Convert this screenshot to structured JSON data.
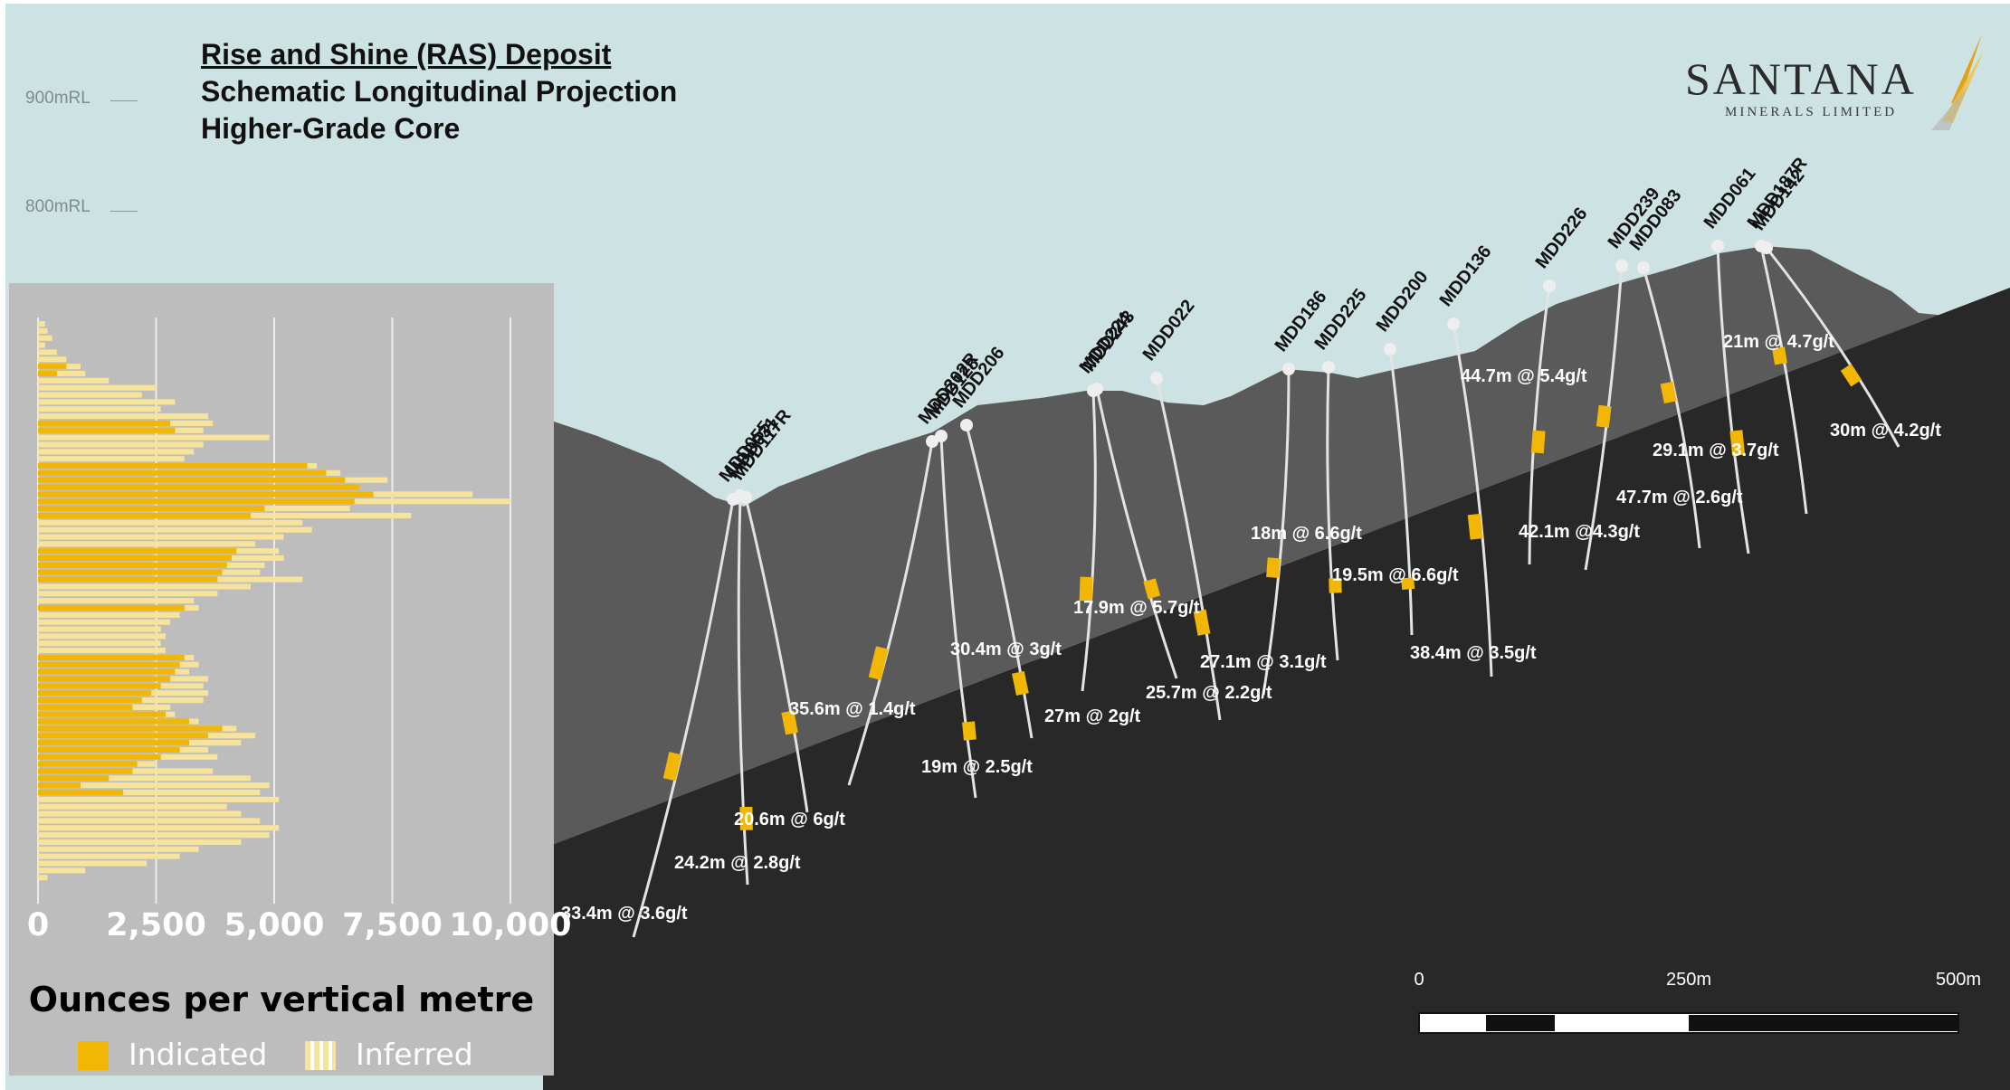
{
  "title": {
    "line1": "Rise and Shine (RAS) Deposit",
    "line2": "Schematic Longitudinal Projection",
    "line3": "Higher-Grade Core"
  },
  "rl_labels": [
    "900mRL",
    "800mRL"
  ],
  "logo": {
    "name": "SANTANA",
    "sub": "MINERALS LIMITED"
  },
  "colors": {
    "sky": "#cde3e3",
    "upper_zone": "#5a5a5a",
    "lower_zone": "#282828",
    "indicated": "#f2b705",
    "inferred": "#f7e39a",
    "drillhole": "#e3e3e3",
    "panel": "#bdbdbd"
  },
  "drillholes": [
    {
      "name": "MDD055"
    },
    {
      "name": "MDD031"
    },
    {
      "name": "MDD117R"
    },
    {
      "name": "MDD202R"
    },
    {
      "name": "MDD128"
    },
    {
      "name": "MDD206"
    },
    {
      "name": "MDD224"
    },
    {
      "name": "MDD243"
    },
    {
      "name": "MDD022"
    },
    {
      "name": "MDD186"
    },
    {
      "name": "MDD225"
    },
    {
      "name": "MDD200"
    },
    {
      "name": "MDD136"
    },
    {
      "name": "MDD226"
    },
    {
      "name": "MDD239"
    },
    {
      "name": "MDD083"
    },
    {
      "name": "MDD061"
    },
    {
      "name": "MDD187R"
    },
    {
      "name": "MDD142"
    }
  ],
  "intercepts": [
    "33.4m @ 3.6g/t",
    "24.2m @ 2.8g/t",
    "20.6m @ 6g/t",
    "35.6m @ 1.4g/t",
    "19m @ 2.5g/t",
    "30.4m @ 3g/t",
    "27m @ 2g/t",
    "17.9m @ 5.7g/t",
    "25.7m @ 2.2g/t",
    "27.1m @ 3.1g/t",
    "18m @ 6.6g/t",
    "19.5m @ 6.6g/t",
    "38.4m @ 3.5g/t",
    "44.7m @ 5.4g/t",
    "42.1m @4.3g/t",
    "47.7m @ 2.6g/t",
    "29.1m @ 3.7g/t",
    "21m @ 4.7g/t",
    "30m @ 4.2g/t"
  ],
  "scale_bar": {
    "labels": [
      "0",
      "250m",
      "500m"
    ]
  },
  "chart_data": {
    "type": "bar",
    "orientation": "horizontal",
    "title": "Ounces per vertical metre",
    "xlabel": "",
    "ylabel": "",
    "xlim": [
      0,
      10000
    ],
    "ticks": [
      0,
      2500,
      5000,
      7500,
      10000
    ],
    "tick_labels": [
      "0",
      "2,500",
      "5,000",
      "7,500",
      "10,000"
    ],
    "series": [
      {
        "name": "Indicated",
        "values": [
          0,
          0,
          0,
          0,
          0,
          0,
          600,
          400,
          0,
          0,
          0,
          0,
          0,
          0,
          2800,
          2900,
          0,
          0,
          0,
          0,
          5700,
          6100,
          6500,
          6800,
          7100,
          6700,
          4800,
          4500,
          0,
          0,
          0,
          0,
          4200,
          4100,
          4000,
          3900,
          3800,
          0,
          0,
          0,
          3100,
          0,
          0,
          0,
          0,
          0,
          0,
          3100,
          3000,
          2900,
          2800,
          2600,
          2400,
          2200,
          2000,
          2700,
          3200,
          3900,
          3600,
          3200,
          3000,
          2600,
          2100,
          2000,
          1500,
          900,
          1800,
          0,
          0,
          0,
          0,
          0,
          0,
          0,
          0,
          0,
          0,
          0,
          0
        ]
      },
      {
        "name": "Inferred",
        "values": [
          150,
          200,
          300,
          150,
          400,
          600,
          900,
          1000,
          1500,
          2500,
          2200,
          2900,
          2600,
          3600,
          3700,
          3500,
          4900,
          3500,
          3300,
          3100,
          5900,
          6400,
          7400,
          6800,
          9200,
          10000,
          6600,
          7900,
          5600,
          5800,
          5200,
          4600,
          5100,
          5200,
          4800,
          4700,
          5600,
          4500,
          3800,
          3300,
          3400,
          3000,
          2800,
          2600,
          2700,
          2600,
          2700,
          3300,
          3400,
          3200,
          3600,
          3500,
          3600,
          3500,
          2800,
          2900,
          3400,
          4200,
          4600,
          4300,
          3600,
          3800,
          2500,
          3700,
          4500,
          4900,
          4700,
          5100,
          4000,
          4300,
          4700,
          5100,
          4900,
          4300,
          3400,
          3000,
          2300,
          1000,
          200
        ]
      }
    ],
    "legend": [
      "Indicated",
      "Inferred"
    ],
    "legend_position": "bottom"
  }
}
